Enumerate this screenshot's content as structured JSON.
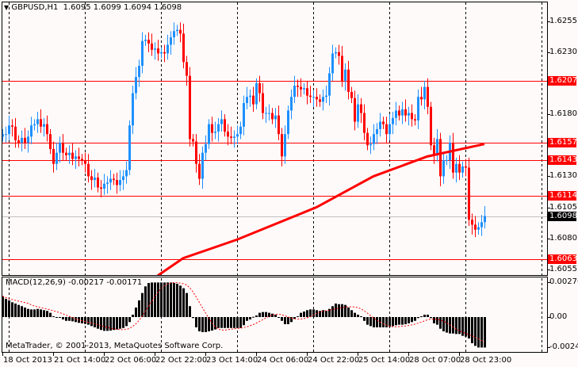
{
  "header": {
    "symbol": "GBPUSD,H1",
    "open": "1.6095",
    "high": "1.6099",
    "low": "1.6094",
    "close": "1.6098"
  },
  "macd_label": "MACD(12,26,9) -0.00217 -0.00171",
  "copyright": "MetaTrader, © 2001-2013, MetaQuotes Software Corp.",
  "colors": {
    "background": "#fffafa",
    "bull": "#1e90ff",
    "bear": "#ff0000",
    "level_line": "#ff0000",
    "ma": "#ff0000",
    "signal": "#ff0000",
    "histogram": "#000000",
    "bid_line": "#c0c0c0"
  },
  "price_axis": [
    "1.6255",
    "1.6230",
    "1.6180",
    "1.6130",
    "1.6105",
    "1.6080",
    "1.6055"
  ],
  "levels": [
    "1.6207",
    "1.6157",
    "1.6143",
    "1.6114",
    "1.6063"
  ],
  "bid": "1.6098",
  "macd_axis": [
    "0.00276",
    "0.00",
    "-0.00243"
  ],
  "time_axis": [
    "18 Oct 2013",
    "21 Oct 14:00",
    "22 Oct 06:00",
    "22 Oct 22:00",
    "23 Oct 14:00",
    "24 Oct 06:00",
    "24 Oct 22:00",
    "25 Oct 14:00",
    "28 Oct 07:00",
    "28 Oct 23:00"
  ],
  "chart_data": {
    "type": "candlestick",
    "symbol": "GBPUSD",
    "timeframe": "H1",
    "ylim": [
      1.6049,
      1.627
    ],
    "closes": [
      1.6164,
      1.6164,
      1.6171,
      1.617,
      1.6159,
      1.6157,
      1.6161,
      1.6157,
      1.6162,
      1.6171,
      1.6172,
      1.6176,
      1.617,
      1.6172,
      1.6164,
      1.6152,
      1.614,
      1.6149,
      1.6157,
      1.6149,
      1.6147,
      1.6149,
      1.6144,
      1.6146,
      1.6144,
      1.6143,
      1.614,
      1.613,
      1.6127,
      1.6129,
      1.6121,
      1.612,
      1.6124,
      1.6125,
      1.6128,
      1.6127,
      1.6123,
      1.6127,
      1.613,
      1.6135,
      1.6171,
      1.6197,
      1.621,
      1.6219,
      1.6239,
      1.624,
      1.6237,
      1.6232,
      1.6233,
      1.6229,
      1.623,
      1.6229,
      1.6236,
      1.6242,
      1.6247,
      1.6248,
      1.6245,
      1.6222,
      1.6211,
      1.616,
      1.6158,
      1.614,
      1.6128,
      1.6149,
      1.6156,
      1.6172,
      1.6165,
      1.6166,
      1.6172,
      1.6176,
      1.6166,
      1.6162,
      1.6161,
      1.6162,
      1.6164,
      1.617,
      1.6189,
      1.6194,
      1.6195,
      1.6188,
      1.6205,
      1.6197,
      1.6181,
      1.6181,
      1.6181,
      1.6176,
      1.6179,
      1.6164,
      1.6146,
      1.6164,
      1.6183,
      1.6194,
      1.6203,
      1.6202,
      1.62,
      1.6201,
      1.6195,
      1.6194,
      1.6194,
      1.6192,
      1.619,
      1.6194,
      1.6195,
      1.6213,
      1.6229,
      1.623,
      1.6227,
      1.6207,
      1.6216,
      1.6198,
      1.6193,
      1.6174,
      1.6188,
      1.6181,
      1.6165,
      1.6155,
      1.6156,
      1.6164,
      1.6168,
      1.6174,
      1.6172,
      1.6164,
      1.6172,
      1.6177,
      1.6183,
      1.6179,
      1.6184,
      1.6179,
      1.6181,
      1.6176,
      1.6175,
      1.6194,
      1.6192,
      1.6202,
      1.6186,
      1.6155,
      1.6147,
      1.616,
      1.613,
      1.6143,
      1.6143,
      1.6157,
      1.6133,
      1.614,
      1.6133,
      1.6138,
      1.6137,
      1.6095,
      1.6091,
      1.6087,
      1.6089,
      1.6093,
      1.6098
    ],
    "moving_average": [
      {
        "bar": 49,
        "value": 1.605
      },
      {
        "bar": 57,
        "value": 1.6064
      },
      {
        "bar": 74,
        "value": 1.6079
      },
      {
        "bar": 99,
        "value": 1.6105
      },
      {
        "bar": 117,
        "value": 1.613
      },
      {
        "bar": 134,
        "value": 1.6146
      },
      {
        "bar": 152,
        "value": 1.6156
      }
    ],
    "macd": {
      "params": "12,26,9",
      "ylim": [
        -0.00243,
        0.00276
      ],
      "histogram": [
        0.00167,
        0.00146,
        0.00133,
        0.00118,
        0.00108,
        0.00097,
        0.00087,
        0.00076,
        0.00065,
        0.00061,
        0.00061,
        0.00065,
        0.00061,
        0.00055,
        0.00049,
        0.00034,
        6e-05,
        -4e-05,
        -4e-05,
        -0.00019,
        -0.0003,
        -0.0003,
        -0.00034,
        -0.0004,
        -0.00046,
        -0.0005,
        -0.00055,
        -0.00061,
        -0.00072,
        -0.00082,
        -0.00093,
        -0.00103,
        -0.0011,
        -0.0011,
        -0.00108,
        -0.00103,
        -0.00099,
        -0.00093,
        -0.00087,
        -0.00072,
        -0.0004,
        0.00019,
        0.00076,
        0.00133,
        0.00192,
        0.00245,
        0.00272,
        0.00276,
        0.00276,
        0.00276,
        0.00276,
        0.00276,
        0.00276,
        0.00276,
        0.00272,
        0.00266,
        0.00251,
        0.0023,
        0.00192,
        0.00087,
        -8e-05,
        -0.00082,
        -0.00114,
        -0.0012,
        -0.0012,
        -0.00114,
        -0.00108,
        -0.00099,
        -0.00087,
        -0.00087,
        -0.00087,
        -0.00087,
        -0.00087,
        -0.00087,
        -0.00087,
        -0.00087,
        -0.00065,
        -0.0003,
        -0.00019,
        2e-05,
        0.00013,
        0.00034,
        0.0004,
        0.0004,
        0.00034,
        0.00027,
        0.00019,
        -2e-05,
        -0.0003,
        -0.00057,
        -0.00057,
        -0.0004,
        -0.00015,
        6e-05,
        0.00034,
        0.00044,
        0.00055,
        0.00061,
        0.00061,
        0.00055,
        0.00049,
        0.00055,
        0.00049,
        0.00065,
        0.00087,
        0.00108,
        0.00103,
        0.00103,
        0.00097,
        0.00076,
        0.00055,
        0.00034,
        0.00019,
        6e-05,
        -0.0003,
        -0.00061,
        -0.00072,
        -0.00082,
        -0.00082,
        -0.00082,
        -0.00082,
        -0.00082,
        -0.00078,
        -0.00072,
        -0.00065,
        -0.00061,
        -0.00061,
        -0.00057,
        -0.0005,
        -0.0004,
        -0.0003,
        -8e-05,
        6e-05,
        0.00019,
        0.00019,
        -8e-05,
        -0.0005,
        -0.00061,
        -0.00093,
        -0.00114,
        -0.00124,
        -0.00131,
        -0.00131,
        -0.00135,
        -0.00135,
        -0.0015,
        -0.00156,
        -0.00171,
        -0.00209,
        -0.0023,
        -0.00243,
        -0.00243,
        -0.00243
      ]
    }
  }
}
